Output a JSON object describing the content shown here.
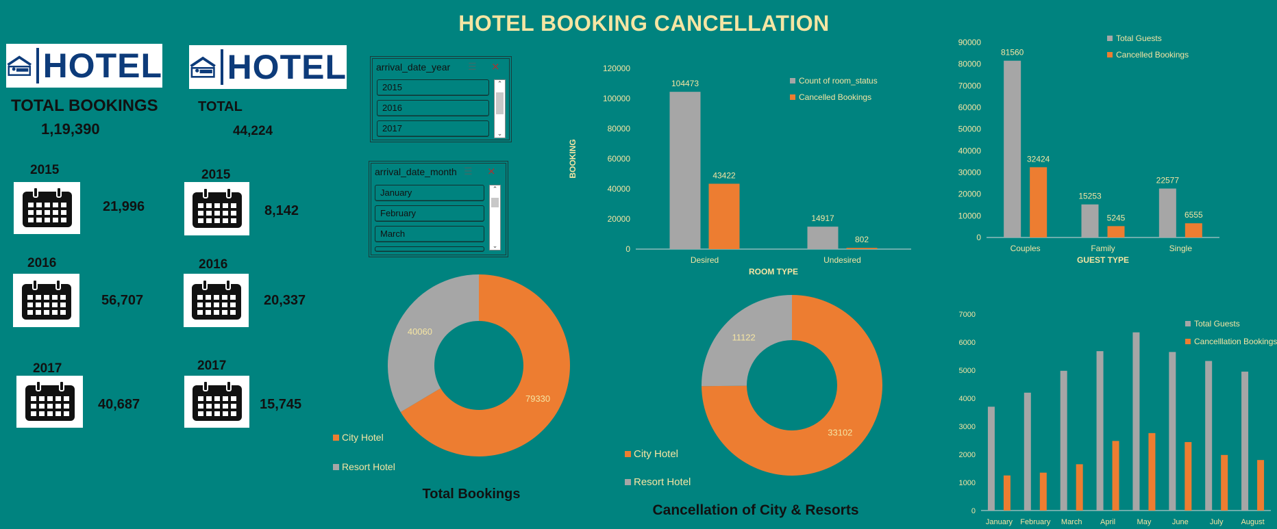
{
  "title": "HOTEL BOOKING CANCELLATION",
  "logo_text": "HOTEL",
  "left_panel": {
    "total_label": "TOTAL BOOKINGS",
    "total_value": "1,19,390",
    "years": [
      {
        "year": "2015",
        "value": "21,996"
      },
      {
        "year": "2016",
        "value": "56,707"
      },
      {
        "year": "2017",
        "value": "40,687"
      }
    ]
  },
  "right_panel": {
    "total_label": "TOTAL",
    "total_value": "44,224",
    "years": [
      {
        "year": "2015",
        "value": "8,142"
      },
      {
        "year": "2016",
        "value": "20,337"
      },
      {
        "year": "2017",
        "value": "15,745"
      }
    ]
  },
  "slicer_year": {
    "header": "arrival_date_year",
    "items": [
      "2015",
      "2016",
      "2017"
    ]
  },
  "slicer_month": {
    "header": "arrival_date_month",
    "items": [
      "January",
      "February",
      "March"
    ]
  },
  "colors": {
    "background": "#00837f",
    "gray": "#a6a6a6",
    "orange": "#ed7d31",
    "title": "#f5e5a3",
    "label": "#f5e5a3"
  },
  "chart_data": [
    {
      "type": "bar",
      "categories": [
        "Desired",
        "Undesired"
      ],
      "series": [
        {
          "name": "Count of room_status",
          "values": [
            104473,
            14917
          ]
        },
        {
          "name": "Cancelled Bookings",
          "values": [
            43422,
            802
          ]
        }
      ],
      "xlabel": "ROOM TYPE",
      "ylabel": "BOOKING",
      "yticks": [
        "0",
        "20000",
        "40000",
        "60000",
        "80000",
        "100000",
        "120000"
      ],
      "ylim": [
        0,
        120000
      ],
      "legend": "top-right"
    },
    {
      "type": "bar",
      "categories": [
        "Couples",
        "Family",
        "Single"
      ],
      "series": [
        {
          "name": "Total Guests",
          "values": [
            81560,
            15253,
            22577
          ]
        },
        {
          "name": "Cancelled Bookings",
          "values": [
            32424,
            5245,
            6555
          ]
        }
      ],
      "xlabel": "GUEST TYPE",
      "yticks": [
        "0",
        "10000",
        "20000",
        "30000",
        "40000",
        "50000",
        "60000",
        "70000",
        "80000",
        "90000"
      ],
      "ylim": [
        0,
        90000
      ],
      "legend": "top"
    },
    {
      "type": "pie",
      "title": "Total Bookings",
      "labels": [
        "City Hotel",
        "Resort Hotel"
      ],
      "values": [
        79330,
        40060
      ],
      "donut": true,
      "legend": "left"
    },
    {
      "type": "pie",
      "title": "Cancellation of City & Resorts",
      "labels": [
        "City Hotel",
        "Resort Hotel"
      ],
      "values": [
        33102,
        11122
      ],
      "donut": true,
      "legend": "left"
    },
    {
      "type": "bar",
      "categories": [
        "January",
        "February",
        "March",
        "April",
        "May",
        "June",
        "July",
        "August"
      ],
      "series": [
        {
          "name": "Total Guests",
          "values": [
            3700,
            4200,
            4980,
            5680,
            6350,
            5650,
            5330,
            4950
          ]
        },
        {
          "name": "Cancelllation Bookings",
          "values": [
            1250,
            1350,
            1650,
            2480,
            2760,
            2440,
            1980,
            1800
          ]
        }
      ],
      "yticks": [
        "0",
        "1000",
        "2000",
        "3000",
        "4000",
        "5000",
        "6000",
        "7000"
      ],
      "ylim": [
        0,
        7000
      ],
      "legend": "top-right"
    }
  ]
}
